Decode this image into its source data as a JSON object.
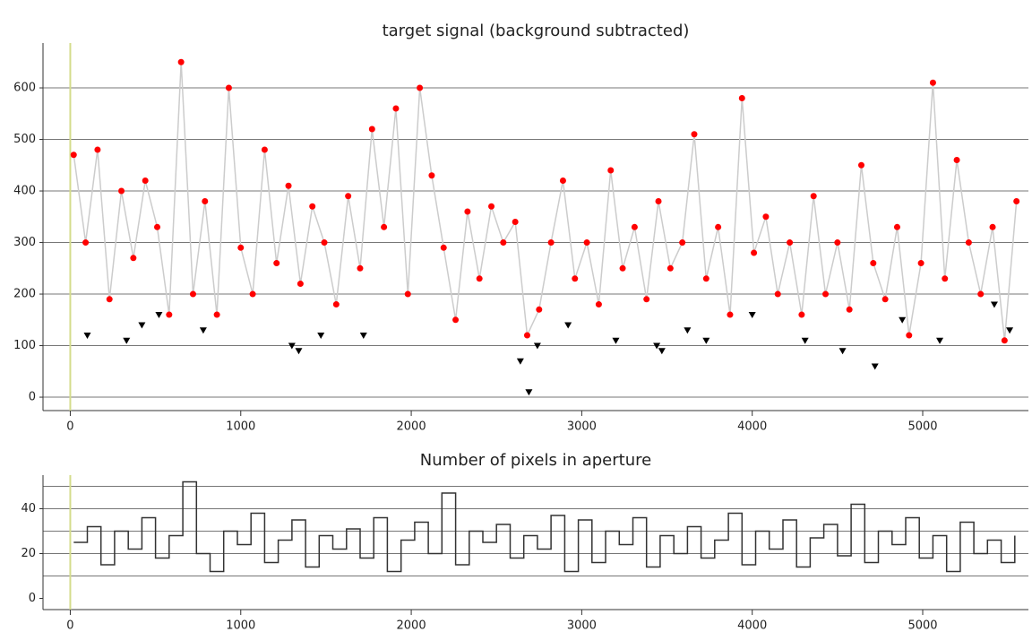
{
  "chart_data": [
    {
      "type": "scatter",
      "title": "target signal (background subtracted)",
      "xlim": [
        -160,
        5620
      ],
      "xticks": [
        0,
        1000,
        2000,
        3000,
        4000,
        5000
      ],
      "ylim": [
        -26,
        687
      ],
      "yticks": [
        0,
        100,
        200,
        300,
        400,
        500,
        600
      ],
      "grid": true,
      "line_color": "#cccccc",
      "zero_line_color": "#d4dc8c",
      "series": [
        {
          "color": "#ff0000",
          "marker": "circle",
          "connect": true,
          "x": [
            20,
            90,
            160,
            230,
            300,
            370,
            440,
            510,
            580,
            650,
            720,
            790,
            860,
            930,
            1000,
            1070,
            1140,
            1210,
            1280,
            1350,
            1420,
            1490,
            1560,
            1630,
            1700,
            1770,
            1840,
            1910,
            1980,
            2050,
            2120,
            2190,
            2260,
            2330,
            2400,
            2470,
            2540,
            2610,
            2680,
            2750,
            2820,
            2890,
            2960,
            3030,
            3100,
            3170,
            3240,
            3310,
            3380,
            3450,
            3520,
            3590,
            3660,
            3730,
            3800,
            3870,
            3940,
            4010,
            4080,
            4150,
            4220,
            4290,
            4360,
            4430,
            4500,
            4570,
            4640,
            4710,
            4780,
            4850,
            4920,
            4990,
            5060,
            5130,
            5200,
            5270,
            5340,
            5410,
            5480,
            5550
          ],
          "values": [
            470,
            300,
            480,
            190,
            400,
            270,
            420,
            330,
            160,
            650,
            200,
            380,
            160,
            600,
            290,
            200,
            480,
            260,
            410,
            220,
            370,
            300,
            180,
            390,
            250,
            520,
            330,
            560,
            200,
            600,
            430,
            290,
            150,
            360,
            230,
            370,
            300,
            340,
            120,
            170,
            300,
            420,
            230,
            300,
            180,
            440,
            250,
            330,
            190,
            380,
            250,
            300,
            510,
            230,
            330,
            160,
            580,
            280,
            350,
            200,
            300,
            160,
            390,
            200,
            300,
            170,
            450,
            260,
            190,
            330,
            120,
            260,
            610,
            230,
            460,
            300,
            200,
            330,
            110,
            380
          ]
        },
        {
          "color": "#000000",
          "marker": "triangle",
          "connect": false,
          "x": [
            100,
            330,
            420,
            520,
            780,
            1300,
            1340,
            1470,
            1720,
            2640,
            2690,
            2740,
            2920,
            3200,
            3440,
            3470,
            3620,
            3730,
            4000,
            4310,
            4530,
            4720,
            4880,
            5100,
            5420,
            5510
          ],
          "values": [
            120,
            110,
            140,
            160,
            130,
            100,
            90,
            120,
            120,
            70,
            10,
            100,
            140,
            110,
            100,
            90,
            130,
            110,
            160,
            110,
            90,
            60,
            150,
            110,
            180,
            130
          ]
        }
      ]
    },
    {
      "type": "line",
      "title": "Number of pixels in aperture",
      "step": true,
      "xlim": [
        -160,
        5620
      ],
      "xticks": [
        0,
        1000,
        2000,
        3000,
        4000,
        5000
      ],
      "ylim": [
        -5,
        55
      ],
      "yticks": [
        0,
        20,
        40
      ],
      "ygrid": [
        10,
        20,
        30,
        40,
        50
      ],
      "zero_line_color": "#d4dc8c",
      "series": [
        {
          "color": "#333333",
          "x": [
            20,
            100,
            180,
            260,
            340,
            420,
            500,
            580,
            660,
            740,
            820,
            900,
            980,
            1060,
            1140,
            1220,
            1300,
            1380,
            1460,
            1540,
            1620,
            1700,
            1780,
            1860,
            1940,
            2020,
            2100,
            2180,
            2260,
            2340,
            2420,
            2500,
            2580,
            2660,
            2740,
            2820,
            2900,
            2980,
            3060,
            3140,
            3220,
            3300,
            3380,
            3460,
            3540,
            3620,
            3700,
            3780,
            3860,
            3940,
            4020,
            4100,
            4180,
            4260,
            4340,
            4420,
            4500,
            4580,
            4660,
            4740,
            4820,
            4900,
            4980,
            5060,
            5140,
            5220,
            5300,
            5380,
            5460,
            5540
          ],
          "values": [
            25,
            32,
            15,
            30,
            22,
            36,
            18,
            28,
            52,
            20,
            12,
            30,
            24,
            38,
            16,
            26,
            35,
            14,
            28,
            22,
            31,
            18,
            36,
            12,
            26,
            34,
            20,
            47,
            15,
            30,
            25,
            33,
            18,
            28,
            22,
            37,
            12,
            35,
            16,
            30,
            24,
            36,
            14,
            28,
            20,
            32,
            18,
            26,
            38,
            15,
            30,
            22,
            35,
            14,
            27,
            33,
            19,
            42,
            16,
            30,
            24,
            36,
            18,
            28,
            12,
            34,
            20,
            26,
            16,
            28
          ]
        }
      ]
    }
  ]
}
